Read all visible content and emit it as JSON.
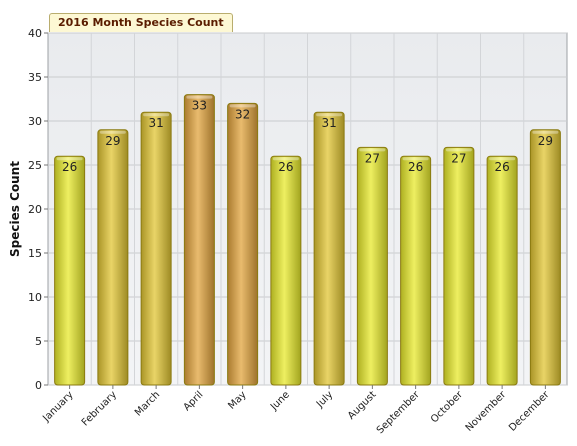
{
  "chart_data": {
    "type": "bar",
    "title": "2016 Month Species Count",
    "xlabel": "",
    "ylabel": "Species Count",
    "ylim": [
      0,
      40
    ],
    "ytick_step": 5,
    "grid": true,
    "categories": [
      "January",
      "February",
      "March",
      "April",
      "May",
      "June",
      "July",
      "August",
      "September",
      "October",
      "November",
      "December"
    ],
    "values": [
      26,
      29,
      31,
      33,
      32,
      26,
      31,
      27,
      26,
      27,
      26,
      29
    ],
    "colors": {
      "plot_background": "#e4e6e9",
      "grid": "#c9cbce",
      "bar_yellow": "#e8ea2c",
      "bar_orange": "#e2a43e",
      "bar_gold": "#e2c634",
      "bar_edge": "#8a7a10"
    }
  }
}
